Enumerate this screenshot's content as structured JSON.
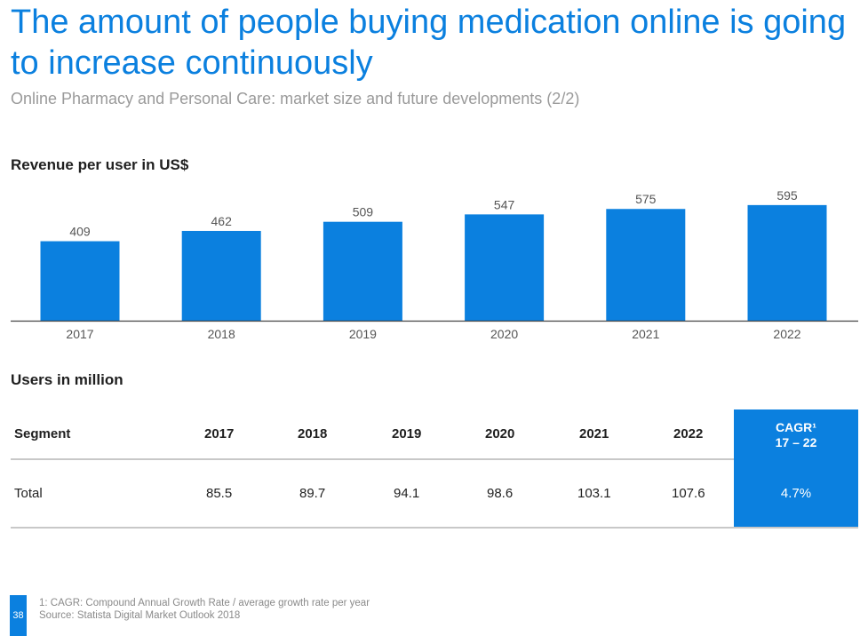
{
  "header": {
    "title": "The amount of people buying medication online is going to increase continuously",
    "subtitle": "Online Pharmacy and Personal Care: market size and future developments (2/2)"
  },
  "chart_section_title": "Revenue per user in US$",
  "chart_data": {
    "type": "bar",
    "title": "Revenue per user in US$",
    "categories": [
      "2017",
      "2018",
      "2019",
      "2020",
      "2021",
      "2022"
    ],
    "values": [
      409,
      462,
      509,
      547,
      575,
      595
    ],
    "xlabel": "",
    "ylabel": "",
    "color": "#0b80df",
    "grid": false
  },
  "table_section_title": "Users in million",
  "table": {
    "headers": [
      "Segment",
      "2017",
      "2018",
      "2019",
      "2020",
      "2021",
      "2022"
    ],
    "cagr_header_line1": "CAGR¹",
    "cagr_header_line2": "17 – 22",
    "rows": [
      {
        "segment": "Total",
        "values": [
          "85.5",
          "89.7",
          "94.1",
          "98.6",
          "103.1",
          "107.6"
        ],
        "cagr": "4.7%"
      }
    ]
  },
  "footer": {
    "page_number": "38",
    "footnote": "1: CAGR: Compound Annual Growth Rate / average growth rate per year",
    "source": "Source: Statista Digital Market Outlook 2018"
  },
  "colors": {
    "accent": "#0b80df",
    "subtitle": "#9a9a9a"
  }
}
